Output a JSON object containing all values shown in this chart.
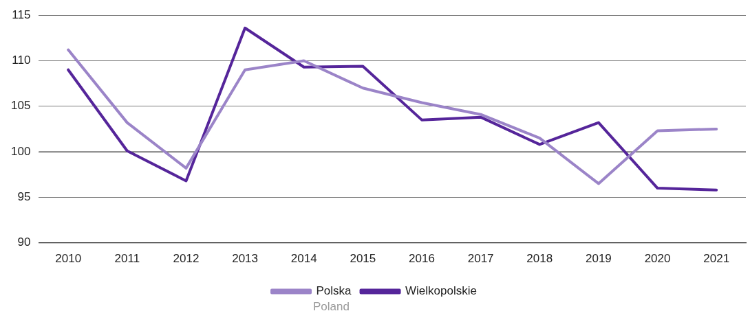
{
  "chart_data": {
    "type": "line",
    "categories": [
      "2010",
      "2011",
      "2012",
      "2013",
      "2014",
      "2015",
      "2016",
      "2017",
      "2018",
      "2019",
      "2020",
      "2021"
    ],
    "series": [
      {
        "name": "Polska",
        "color": "#9b84c8",
        "values": [
          111.2,
          103.2,
          98.2,
          109.0,
          110.0,
          107.0,
          105.4,
          104.1,
          101.5,
          96.5,
          102.3,
          102.5
        ]
      },
      {
        "name": "Wielkopolskie",
        "color": "#55259a",
        "values": [
          109.0,
          100.1,
          96.8,
          113.6,
          109.3,
          109.4,
          103.5,
          103.8,
          100.8,
          103.2,
          96.0,
          95.8
        ]
      }
    ],
    "ylim": [
      90,
      115
    ],
    "yticks": [
      90,
      95,
      100,
      105,
      110,
      115
    ],
    "grid": "y",
    "legend": "bottom",
    "marker": "none",
    "line_style": "solid",
    "ref_lines": [
      {
        "axis": "y",
        "value": 100,
        "color": "#444444"
      }
    ],
    "annotations": [
      "Poland"
    ]
  }
}
